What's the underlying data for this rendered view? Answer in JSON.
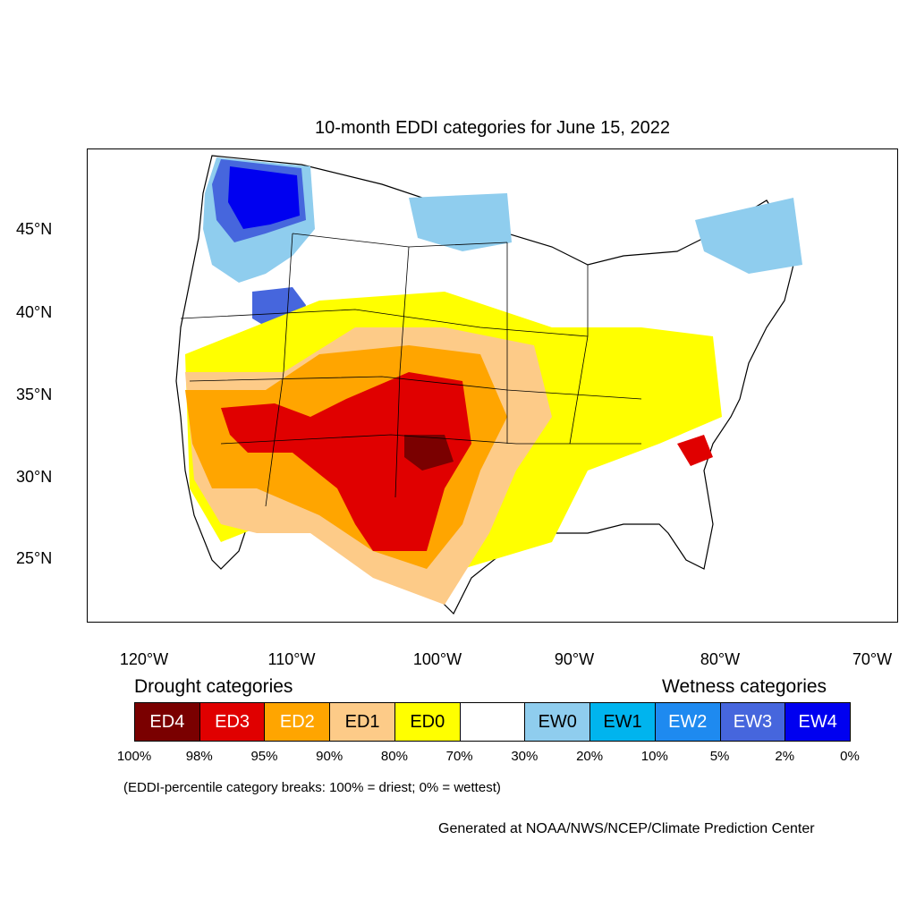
{
  "title": "10-month EDDI categories for June 15, 2022",
  "axes": {
    "lat_labels": [
      "45°N",
      "40°N",
      "35°N",
      "30°N",
      "25°N"
    ],
    "lon_labels": [
      "120°W",
      "110°W",
      "100°W",
      "90°W",
      "80°W",
      "70°W"
    ]
  },
  "legend": {
    "drought_heading": "Drought categories",
    "wetness_heading": "Wetness categories",
    "categories": [
      {
        "label": "ED4",
        "color": "#7a0000",
        "text_color": "#ffffff"
      },
      {
        "label": "ED3",
        "color": "#e00000",
        "text_color": "#ffffff"
      },
      {
        "label": "ED2",
        "color": "#ffa500",
        "text_color": "#ffffff"
      },
      {
        "label": "ED1",
        "color": "#fdcb88",
        "text_color": "#000000"
      },
      {
        "label": "ED0",
        "color": "#ffff00",
        "text_color": "#000000"
      },
      {
        "label": "",
        "color": "#ffffff",
        "text_color": "#000000"
      },
      {
        "label": "EW0",
        "color": "#8fcdee",
        "text_color": "#000000"
      },
      {
        "label": "EW1",
        "color": "#00b4ee",
        "text_color": "#000000"
      },
      {
        "label": "EW2",
        "color": "#1e8af0",
        "text_color": "#ffffff"
      },
      {
        "label": "EW3",
        "color": "#4666dd",
        "text_color": "#ffffff"
      },
      {
        "label": "EW4",
        "color": "#0000f0",
        "text_color": "#ffffff"
      }
    ],
    "breaks": [
      "100%",
      "98%",
      "95%",
      "90%",
      "80%",
      "70%",
      "30%",
      "20%",
      "10%",
      "5%",
      "2%",
      "0%"
    ],
    "note": "(EDDI-percentile category breaks: 100% = driest; 0% = wettest)"
  },
  "credit": "Generated at NOAA/NWS/NCEP/Climate Prediction Center",
  "colors": {
    "ED4": "#7a0000",
    "ED3": "#e00000",
    "ED2": "#ffa500",
    "ED1": "#fdcb88",
    "ED0": "#ffff00",
    "EW0": "#8fcdee",
    "EW1": "#00b4ee",
    "EW2": "#1e8af0",
    "EW3": "#4666dd",
    "EW4": "#0000f0"
  }
}
